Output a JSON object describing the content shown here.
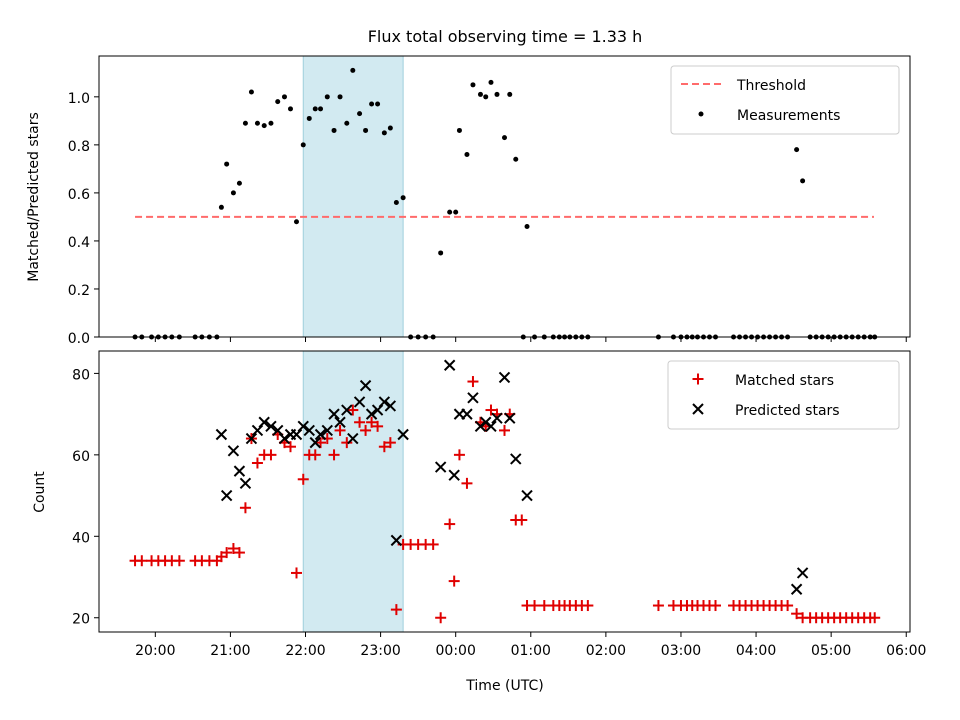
{
  "figure_title": "Flux total observing time = 1.33 h",
  "colors": {
    "threshold": "#ff6b6b",
    "measurement": "#000000",
    "matched": "#e00000",
    "predicted": "#000000",
    "window": "#add8e6"
  },
  "chart_data": [
    {
      "type": "scatter",
      "ylabel": "Matched/Predicted stars",
      "xlim": [
        19.25,
        30.05
      ],
      "ylim": [
        0,
        1.17
      ],
      "yticks": [
        0.0,
        0.2,
        0.4,
        0.6,
        0.8,
        1.0
      ],
      "ytick_labels": [
        "0.0",
        "0.2",
        "0.4",
        "0.6",
        "0.8",
        "1.0"
      ],
      "highlight_span": [
        21.97,
        23.3
      ],
      "threshold": {
        "name": "Threshold",
        "value": 0.5,
        "x_range": [
          19.73,
          29.57
        ]
      },
      "legend_position": "upper right",
      "legend": [
        "Threshold",
        "Measurements"
      ],
      "series": [
        {
          "name": "Measurements",
          "points": [
            [
              19.73,
              0
            ],
            [
              19.82,
              0
            ],
            [
              19.95,
              0
            ],
            [
              20.04,
              0
            ],
            [
              20.13,
              0
            ],
            [
              20.22,
              0
            ],
            [
              20.32,
              0
            ],
            [
              20.53,
              0
            ],
            [
              20.62,
              0
            ],
            [
              20.72,
              0
            ],
            [
              20.82,
              0
            ],
            [
              20.88,
              0.54
            ],
            [
              20.95,
              0.72
            ],
            [
              21.04,
              0.6
            ],
            [
              21.12,
              0.64
            ],
            [
              21.2,
              0.89
            ],
            [
              21.28,
              1.02
            ],
            [
              21.36,
              0.89
            ],
            [
              21.45,
              0.88
            ],
            [
              21.54,
              0.89
            ],
            [
              21.63,
              0.98
            ],
            [
              21.72,
              1.0
            ],
            [
              21.8,
              0.95
            ],
            [
              21.88,
              0.48
            ],
            [
              21.97,
              0.8
            ],
            [
              22.05,
              0.91
            ],
            [
              22.13,
              0.95
            ],
            [
              22.2,
              0.95
            ],
            [
              22.29,
              1.0
            ],
            [
              22.38,
              0.86
            ],
            [
              22.46,
              1.0
            ],
            [
              22.55,
              0.89
            ],
            [
              22.63,
              1.11
            ],
            [
              22.72,
              0.93
            ],
            [
              22.8,
              0.86
            ],
            [
              22.88,
              0.97
            ],
            [
              22.96,
              0.97
            ],
            [
              23.05,
              0.85
            ],
            [
              23.13,
              0.87
            ],
            [
              23.21,
              0.56
            ],
            [
              23.3,
              0.58
            ],
            [
              23.4,
              0
            ],
            [
              23.5,
              0
            ],
            [
              23.6,
              0
            ],
            [
              23.7,
              0
            ],
            [
              23.8,
              0.35
            ],
            [
              23.92,
              0.52
            ],
            [
              24.0,
              0.52
            ],
            [
              24.05,
              0.86
            ],
            [
              24.15,
              0.76
            ],
            [
              24.23,
              1.05
            ],
            [
              24.33,
              1.01
            ],
            [
              24.4,
              1.0
            ],
            [
              24.47,
              1.06
            ],
            [
              24.55,
              1.01
            ],
            [
              24.65,
              0.83
            ],
            [
              24.72,
              1.01
            ],
            [
              24.8,
              0.74
            ],
            [
              24.95,
              0.46
            ],
            [
              24.9,
              0
            ],
            [
              25.05,
              0
            ],
            [
              25.18,
              0
            ],
            [
              25.3,
              0
            ],
            [
              25.38,
              0
            ],
            [
              25.45,
              0
            ],
            [
              25.52,
              0
            ],
            [
              25.6,
              0
            ],
            [
              25.68,
              0
            ],
            [
              25.76,
              0
            ],
            [
              26.7,
              0
            ],
            [
              26.9,
              0
            ],
            [
              27.0,
              0
            ],
            [
              27.08,
              0
            ],
            [
              27.15,
              0
            ],
            [
              27.22,
              0
            ],
            [
              27.3,
              0
            ],
            [
              27.38,
              0
            ],
            [
              27.46,
              0
            ],
            [
              27.7,
              0
            ],
            [
              27.78,
              0
            ],
            [
              27.86,
              0
            ],
            [
              27.94,
              0
            ],
            [
              28.02,
              0
            ],
            [
              28.1,
              0
            ],
            [
              28.18,
              0
            ],
            [
              28.26,
              0
            ],
            [
              28.34,
              0
            ],
            [
              28.42,
              0
            ],
            [
              28.54,
              0.78
            ],
            [
              28.62,
              0.65
            ],
            [
              28.72,
              0
            ],
            [
              28.8,
              0
            ],
            [
              28.88,
              0
            ],
            [
              28.96,
              0
            ],
            [
              29.04,
              0
            ],
            [
              29.12,
              0
            ],
            [
              29.2,
              0
            ],
            [
              29.28,
              0
            ],
            [
              29.36,
              0
            ],
            [
              29.44,
              0
            ],
            [
              29.52,
              0
            ],
            [
              29.58,
              0
            ]
          ]
        }
      ]
    },
    {
      "type": "scatter",
      "ylabel": "Count",
      "xlabel": "Time (UTC)",
      "xlim": [
        19.25,
        30.05
      ],
      "ylim": [
        16.5,
        85.5
      ],
      "yticks": [
        20,
        40,
        60,
        80
      ],
      "ytick_labels": [
        "20",
        "40",
        "60",
        "80"
      ],
      "xticks": [
        20,
        21,
        22,
        23,
        24,
        25,
        26,
        27,
        28,
        29,
        30
      ],
      "xtick_labels": [
        "20:00",
        "21:00",
        "22:00",
        "23:00",
        "00:00",
        "01:00",
        "02:00",
        "03:00",
        "04:00",
        "05:00",
        "06:00"
      ],
      "highlight_span": [
        21.97,
        23.3
      ],
      "legend_position": "upper right",
      "legend": [
        "Matched stars",
        "Predicted stars"
      ],
      "series": [
        {
          "name": "Matched stars",
          "points": [
            [
              19.73,
              34
            ],
            [
              19.82,
              34
            ],
            [
              19.95,
              34
            ],
            [
              20.04,
              34
            ],
            [
              20.13,
              34
            ],
            [
              20.22,
              34
            ],
            [
              20.32,
              34
            ],
            [
              20.53,
              34
            ],
            [
              20.62,
              34
            ],
            [
              20.72,
              34
            ],
            [
              20.82,
              34
            ],
            [
              20.88,
              35
            ],
            [
              20.95,
              36
            ],
            [
              21.04,
              37
            ],
            [
              21.12,
              36
            ],
            [
              21.2,
              47
            ],
            [
              21.28,
              64
            ],
            [
              21.36,
              58
            ],
            [
              21.45,
              60
            ],
            [
              21.54,
              60
            ],
            [
              21.63,
              65
            ],
            [
              21.72,
              63
            ],
            [
              21.8,
              62
            ],
            [
              21.88,
              31
            ],
            [
              21.97,
              54
            ],
            [
              22.05,
              60
            ],
            [
              22.13,
              60
            ],
            [
              22.2,
              63
            ],
            [
              22.29,
              64
            ],
            [
              22.38,
              60
            ],
            [
              22.46,
              66
            ],
            [
              22.55,
              63
            ],
            [
              22.63,
              71
            ],
            [
              22.72,
              68
            ],
            [
              22.8,
              66
            ],
            [
              22.88,
              68
            ],
            [
              22.96,
              67
            ],
            [
              23.05,
              62
            ],
            [
              23.13,
              63
            ],
            [
              23.21,
              22
            ],
            [
              23.3,
              38
            ],
            [
              23.4,
              38
            ],
            [
              23.5,
              38
            ],
            [
              23.6,
              38
            ],
            [
              23.7,
              38
            ],
            [
              23.8,
              20
            ],
            [
              23.92,
              43
            ],
            [
              23.98,
              29
            ],
            [
              24.05,
              60
            ],
            [
              24.15,
              53
            ],
            [
              24.23,
              78
            ],
            [
              24.33,
              68
            ],
            [
              24.4,
              67
            ],
            [
              24.47,
              71
            ],
            [
              24.55,
              70
            ],
            [
              24.65,
              66
            ],
            [
              24.72,
              70
            ],
            [
              24.8,
              44
            ],
            [
              24.88,
              44
            ],
            [
              24.95,
              23
            ],
            [
              25.05,
              23
            ],
            [
              25.18,
              23
            ],
            [
              25.3,
              23
            ],
            [
              25.38,
              23
            ],
            [
              25.45,
              23
            ],
            [
              25.52,
              23
            ],
            [
              25.6,
              23
            ],
            [
              25.68,
              23
            ],
            [
              25.76,
              23
            ],
            [
              26.7,
              23
            ],
            [
              26.9,
              23
            ],
            [
              27.0,
              23
            ],
            [
              27.08,
              23
            ],
            [
              27.15,
              23
            ],
            [
              27.22,
              23
            ],
            [
              27.3,
              23
            ],
            [
              27.38,
              23
            ],
            [
              27.46,
              23
            ],
            [
              27.7,
              23
            ],
            [
              27.78,
              23
            ],
            [
              27.86,
              23
            ],
            [
              27.94,
              23
            ],
            [
              28.02,
              23
            ],
            [
              28.1,
              23
            ],
            [
              28.18,
              23
            ],
            [
              28.26,
              23
            ],
            [
              28.34,
              23
            ],
            [
              28.42,
              23
            ],
            [
              28.54,
              21
            ],
            [
              28.62,
              20
            ],
            [
              28.72,
              20
            ],
            [
              28.8,
              20
            ],
            [
              28.88,
              20
            ],
            [
              28.96,
              20
            ],
            [
              29.04,
              20
            ],
            [
              29.12,
              20
            ],
            [
              29.2,
              20
            ],
            [
              29.28,
              20
            ],
            [
              29.36,
              20
            ],
            [
              29.44,
              20
            ],
            [
              29.52,
              20
            ],
            [
              29.58,
              20
            ]
          ]
        },
        {
          "name": "Predicted stars",
          "points": [
            [
              20.88,
              65
            ],
            [
              20.95,
              50
            ],
            [
              21.04,
              61
            ],
            [
              21.12,
              56
            ],
            [
              21.2,
              53
            ],
            [
              21.28,
              64
            ],
            [
              21.36,
              66
            ],
            [
              21.45,
              68
            ],
            [
              21.54,
              67
            ],
            [
              21.63,
              66
            ],
            [
              21.72,
              64
            ],
            [
              21.8,
              65
            ],
            [
              21.88,
              65
            ],
            [
              21.97,
              67
            ],
            [
              22.05,
              66
            ],
            [
              22.13,
              63
            ],
            [
              22.2,
              65
            ],
            [
              22.29,
              66
            ],
            [
              22.38,
              70
            ],
            [
              22.46,
              68
            ],
            [
              22.55,
              71
            ],
            [
              22.63,
              64
            ],
            [
              22.72,
              73
            ],
            [
              22.8,
              77
            ],
            [
              22.88,
              70
            ],
            [
              22.96,
              71
            ],
            [
              23.05,
              73
            ],
            [
              23.13,
              72
            ],
            [
              23.21,
              39
            ],
            [
              23.3,
              65
            ],
            [
              23.8,
              57
            ],
            [
              23.92,
              82
            ],
            [
              23.98,
              55
            ],
            [
              24.05,
              70
            ],
            [
              24.15,
              70
            ],
            [
              24.23,
              74
            ],
            [
              24.33,
              67
            ],
            [
              24.4,
              68
            ],
            [
              24.47,
              67
            ],
            [
              24.55,
              69
            ],
            [
              24.65,
              79
            ],
            [
              24.72,
              69
            ],
            [
              24.8,
              59
            ],
            [
              24.95,
              50
            ],
            [
              28.54,
              27
            ],
            [
              28.62,
              31
            ]
          ]
        }
      ]
    }
  ]
}
